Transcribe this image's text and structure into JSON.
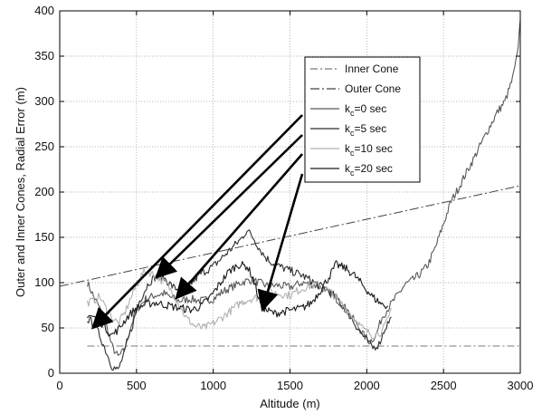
{
  "chart_data": {
    "type": "line",
    "title": "",
    "xlabel": "Altitude (m)",
    "ylabel": "Outer and Inner Cones, Radial Error (m)",
    "xlim": [
      0,
      3000
    ],
    "ylim": [
      0,
      400
    ],
    "xticks": [
      "0",
      "500",
      "1000",
      "1500",
      "2000",
      "2500",
      "3000"
    ],
    "yticks": [
      "0",
      "50",
      "100",
      "150",
      "200",
      "250",
      "300",
      "350",
      "400"
    ],
    "grid": true,
    "legend_position": "upper-right",
    "series": [
      {
        "name": "Inner Cone",
        "legend_label": "Inner Cone",
        "style": "dash-dot",
        "color": "#7a7a7a",
        "points": [
          [
            180,
            30
          ],
          [
            3000,
            30
          ]
        ]
      },
      {
        "name": "Outer Cone",
        "legend_label": "Outer Cone",
        "style": "dash-dot",
        "color": "#444444",
        "points": [
          [
            0,
            96
          ],
          [
            3000,
            207
          ]
        ]
      },
      {
        "name": "kc=0 sec",
        "legend_main": "k",
        "legend_sub": "c",
        "legend_rest": "=0 sec",
        "style": "solid",
        "color": "#595959",
        "points": [
          [
            180,
            100
          ],
          [
            220,
            85
          ],
          [
            260,
            72
          ],
          [
            300,
            55
          ],
          [
            340,
            30
          ],
          [
            380,
            18
          ],
          [
            420,
            25
          ],
          [
            460,
            50
          ],
          [
            500,
            70
          ],
          [
            560,
            82
          ],
          [
            620,
            86
          ],
          [
            680,
            88
          ],
          [
            720,
            84
          ],
          [
            780,
            80
          ],
          [
            850,
            82
          ],
          [
            920,
            80
          ],
          [
            1000,
            82
          ],
          [
            1060,
            90
          ],
          [
            1120,
            95
          ],
          [
            1180,
            100
          ],
          [
            1240,
            103
          ],
          [
            1300,
            100
          ],
          [
            1360,
            96
          ],
          [
            1420,
            97
          ],
          [
            1500,
            95
          ],
          [
            1580,
            100
          ],
          [
            1650,
            98
          ],
          [
            1720,
            93
          ],
          [
            1780,
            86
          ],
          [
            1850,
            74
          ],
          [
            1920,
            58
          ],
          [
            1980,
            42
          ],
          [
            2020,
            35
          ],
          [
            2060,
            42
          ],
          [
            2100,
            62
          ],
          [
            2140,
            72
          ],
          [
            2200,
            86
          ],
          [
            2250,
            98
          ],
          [
            2300,
            103
          ],
          [
            2350,
            110
          ],
          [
            2400,
            120
          ],
          [
            2450,
            140
          ],
          [
            2500,
            165
          ],
          [
            2550,
            190
          ],
          [
            2600,
            205
          ],
          [
            2650,
            222
          ],
          [
            2700,
            238
          ],
          [
            2750,
            255
          ],
          [
            2800,
            272
          ],
          [
            2850,
            288
          ],
          [
            2900,
            300
          ],
          [
            2950,
            325
          ],
          [
            2980,
            350
          ],
          [
            3000,
            390
          ]
        ]
      },
      {
        "name": "kc=5 sec",
        "legend_main": "k",
        "legend_sub": "c",
        "legend_rest": "=5 sec",
        "style": "solid",
        "color": "#2e2e2e",
        "points": [
          [
            180,
            60
          ],
          [
            220,
            55
          ],
          [
            260,
            42
          ],
          [
            300,
            25
          ],
          [
            340,
            8
          ],
          [
            380,
            3
          ],
          [
            420,
            22
          ],
          [
            460,
            45
          ],
          [
            520,
            80
          ],
          [
            580,
            100
          ],
          [
            620,
            106
          ],
          [
            680,
            105
          ],
          [
            740,
            95
          ],
          [
            800,
            90
          ],
          [
            860,
            100
          ],
          [
            920,
            110
          ],
          [
            1000,
            118
          ],
          [
            1060,
            128
          ],
          [
            1120,
            138
          ],
          [
            1180,
            148
          ],
          [
            1220,
            158
          ],
          [
            1260,
            150
          ],
          [
            1300,
            138
          ],
          [
            1340,
            128
          ],
          [
            1400,
            120
          ],
          [
            1460,
            116
          ],
          [
            1520,
            112
          ],
          [
            1580,
            108
          ],
          [
            1640,
            102
          ],
          [
            1700,
            96
          ],
          [
            1760,
            90
          ],
          [
            1820,
            80
          ],
          [
            1880,
            66
          ],
          [
            1940,
            50
          ],
          [
            2000,
            36
          ],
          [
            2040,
            28
          ],
          [
            2080,
            32
          ],
          [
            2120,
            50
          ],
          [
            2160,
            62
          ]
        ]
      },
      {
        "name": "kc=10 sec",
        "legend_main": "k",
        "legend_sub": "c",
        "legend_rest": "=10 sec",
        "style": "solid",
        "color": "#b0b0b0",
        "points": [
          [
            180,
            78
          ],
          [
            220,
            80
          ],
          [
            260,
            85
          ],
          [
            300,
            72
          ],
          [
            340,
            62
          ],
          [
            380,
            55
          ],
          [
            420,
            65
          ],
          [
            480,
            90
          ],
          [
            540,
            110
          ],
          [
            580,
            112
          ],
          [
            640,
            106
          ],
          [
            700,
            98
          ],
          [
            760,
            82
          ],
          [
            820,
            62
          ],
          [
            880,
            52
          ],
          [
            940,
            50
          ],
          [
            1000,
            55
          ],
          [
            1060,
            62
          ],
          [
            1120,
            70
          ],
          [
            1180,
            78
          ],
          [
            1240,
            82
          ],
          [
            1300,
            84
          ],
          [
            1360,
            90
          ],
          [
            1420,
            88
          ],
          [
            1500,
            86
          ],
          [
            1560,
            92
          ],
          [
            1620,
            96
          ],
          [
            1680,
            98
          ],
          [
            1740,
            92
          ],
          [
            1800,
            84
          ],
          [
            1860,
            72
          ],
          [
            1920,
            60
          ],
          [
            1980,
            48
          ],
          [
            2040,
            42
          ],
          [
            2100,
            46
          ],
          [
            2140,
            60
          ],
          [
            2160,
            72
          ]
        ]
      },
      {
        "name": "kc=20 sec",
        "legend_main": "k",
        "legend_sub": "c",
        "legend_rest": "=20 sec",
        "style": "solid",
        "color": "#1a1a1a",
        "points": [
          [
            180,
            65
          ],
          [
            220,
            62
          ],
          [
            260,
            58
          ],
          [
            300,
            50
          ],
          [
            340,
            42
          ],
          [
            380,
            48
          ],
          [
            440,
            62
          ],
          [
            500,
            72
          ],
          [
            560,
            76
          ],
          [
            620,
            78
          ],
          [
            700,
            75
          ],
          [
            780,
            72
          ],
          [
            860,
            70
          ],
          [
            920,
            74
          ],
          [
            980,
            84
          ],
          [
            1040,
            98
          ],
          [
            1100,
            112
          ],
          [
            1160,
            120
          ],
          [
            1220,
            118
          ],
          [
            1260,
            105
          ],
          [
            1300,
            80
          ],
          [
            1340,
            70
          ],
          [
            1400,
            66
          ],
          [
            1460,
            68
          ],
          [
            1520,
            70
          ],
          [
            1580,
            72
          ],
          [
            1640,
            78
          ],
          [
            1700,
            92
          ],
          [
            1760,
            108
          ],
          [
            1800,
            120
          ],
          [
            1860,
            116
          ],
          [
            1920,
            108
          ],
          [
            1980,
            96
          ],
          [
            2040,
            84
          ],
          [
            2100,
            76
          ],
          [
            2140,
            74
          ]
        ]
      }
    ],
    "annotations": {
      "arrows": [
        {
          "from": [
            1580,
            285
          ],
          "to": [
            215,
            50
          ]
        },
        {
          "from": [
            1580,
            263
          ],
          "to": [
            630,
            106
          ]
        },
        {
          "from": [
            1580,
            242
          ],
          "to": [
            760,
            83
          ]
        },
        {
          "from": [
            1580,
            220
          ],
          "to": [
            1320,
            70
          ]
        }
      ]
    }
  }
}
